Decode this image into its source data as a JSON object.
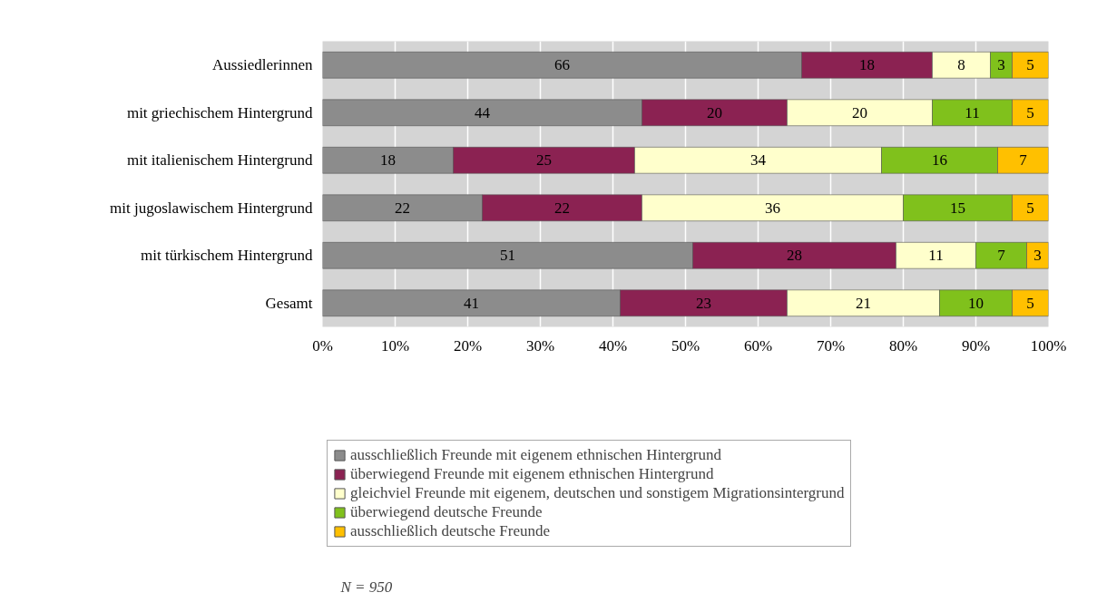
{
  "chart_data": {
    "type": "bar",
    "orientation": "horizontal",
    "stacked": true,
    "data_labels": true,
    "grid": "x",
    "legend": "bottom",
    "categories": [
      "Aussiedlerinnen",
      "mit griechischem Hintergrund",
      "mit italienischem Hintergrund",
      "mit jugoslawischem Hintergrund",
      "mit türkischem Hintergrund",
      "Gesamt"
    ],
    "xlim": [
      0,
      100
    ],
    "xticks": [
      {
        "value": 0,
        "label": "0%"
      },
      {
        "value": 10,
        "label": "10%"
      },
      {
        "value": 20,
        "label": "20%"
      },
      {
        "value": 30,
        "label": "30%"
      },
      {
        "value": 40,
        "label": "40%"
      },
      {
        "value": 50,
        "label": "50%"
      },
      {
        "value": 60,
        "label": "60%"
      },
      {
        "value": 70,
        "label": "70%"
      },
      {
        "value": 80,
        "label": "80%"
      },
      {
        "value": 90,
        "label": "90%"
      },
      {
        "value": 100,
        "label": "100%"
      }
    ],
    "series": [
      {
        "name": "ausschließlich Freunde mit eigenem ethnischen Hintergrund",
        "color": "#8c8c8c",
        "values": [
          66,
          44,
          18,
          22,
          51,
          41
        ]
      },
      {
        "name": "überwiegend Freunde mit eigenem ethnischen Hintergrund",
        "color": "#8b2252",
        "values": [
          18,
          20,
          25,
          22,
          28,
          23
        ]
      },
      {
        "name": "gleichviel Freunde mit eigenem, deutschen und sonstigem Migrationsintergrund",
        "color": "#ffffcc",
        "values": [
          8,
          20,
          34,
          36,
          11,
          21
        ]
      },
      {
        "name": "überwiegend deutsche Freunde",
        "color": "#80c11c",
        "values": [
          3,
          11,
          16,
          15,
          7,
          10
        ]
      },
      {
        "name": "ausschließlich deutsche Freunde",
        "color": "#ffc000",
        "values": [
          5,
          5,
          7,
          5,
          3,
          5
        ]
      }
    ],
    "annotations": [
      "N = 950"
    ]
  }
}
